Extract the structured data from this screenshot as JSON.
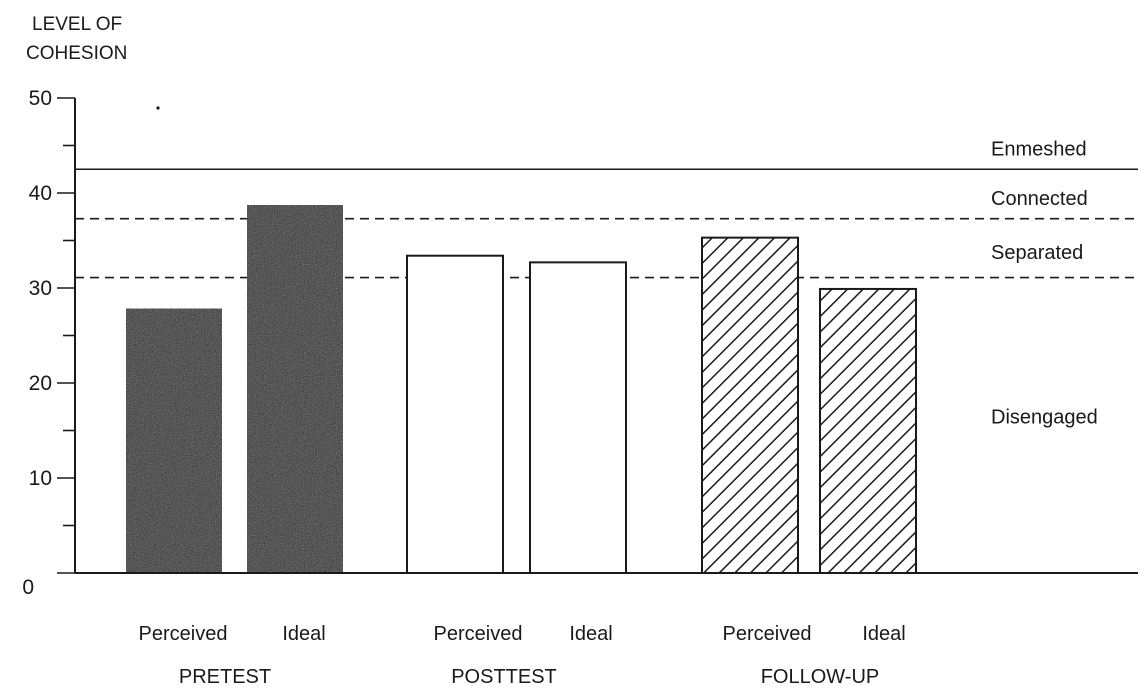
{
  "chart_data": {
    "type": "bar",
    "ylabel_lines": [
      "LEVEL OF",
      "COHESION"
    ],
    "ylim": [
      0,
      50
    ],
    "y_ticks": [
      0,
      10,
      20,
      30,
      40,
      50
    ],
    "y_minor_step": 5,
    "grid": false,
    "groups": [
      {
        "name": "PRETEST",
        "bars": [
          {
            "label": "Perceived",
            "value": 27.8,
            "fill": "#1e1e1e",
            "pattern": "solid-dark"
          },
          {
            "label": "Ideal",
            "value": 38.7,
            "fill": "#1e1e1e",
            "pattern": "solid-dark"
          }
        ]
      },
      {
        "name": "POSTTEST",
        "bars": [
          {
            "label": "Perceived",
            "value": 33.4,
            "fill": "#ffffff",
            "pattern": "open"
          },
          {
            "label": "Ideal",
            "value": 32.7,
            "fill": "#ffffff",
            "pattern": "open"
          }
        ]
      },
      {
        "name": "FOLLOW-UP",
        "bars": [
          {
            "label": "Perceived",
            "value": 35.3,
            "fill": "#ffffff",
            "pattern": "diagonal-hatch"
          },
          {
            "label": "Ideal",
            "value": 29.9,
            "fill": "#ffffff",
            "pattern": "diagonal-hatch"
          }
        ]
      }
    ],
    "reference_lines": [
      {
        "value": 42.5,
        "style": "solid"
      },
      {
        "value": 37.3,
        "style": "dashed"
      },
      {
        "value": 31.1,
        "style": "dashed"
      }
    ],
    "region_labels": [
      {
        "text": "Enmeshed",
        "value": 44.7
      },
      {
        "text": "Connected",
        "value": 39.5
      },
      {
        "text": "Separated",
        "value": 33.8
      },
      {
        "text": "Disengaged",
        "value": 16.5
      }
    ],
    "colors": {
      "ink": "#1a1a1a",
      "dark_bar": "#1e1e1e"
    }
  }
}
